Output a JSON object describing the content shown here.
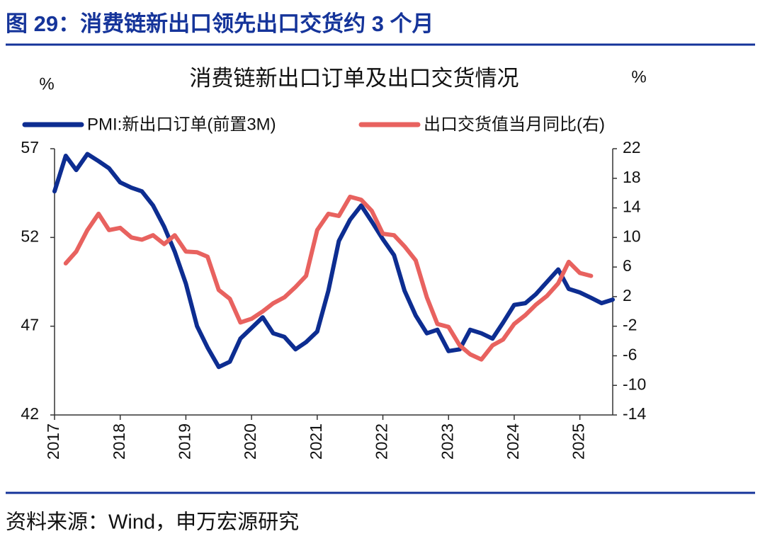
{
  "figure_title": "图 29：消费链新出口领先出口交货约 3 个月",
  "source": "资料来源：Wind，申万宏源研究",
  "chart_data": {
    "type": "line",
    "title": "消费链新出口订单及出口交货情况",
    "ylabel": "%",
    "y2label": "%",
    "x": [
      2017,
      2017.17,
      2017.33,
      2017.5,
      2017.67,
      2017.83,
      2018,
      2018.17,
      2018.33,
      2018.5,
      2018.67,
      2018.83,
      2019,
      2019.17,
      2019.33,
      2019.5,
      2019.67,
      2019.83,
      2020,
      2020.17,
      2020.33,
      2020.5,
      2020.67,
      2020.83,
      2021,
      2021.17,
      2021.33,
      2021.5,
      2021.67,
      2021.83,
      2022,
      2022.17,
      2022.33,
      2022.5,
      2022.67,
      2022.83,
      2023,
      2023.17,
      2023.33,
      2023.5,
      2023.67,
      2023.83,
      2024,
      2024.17,
      2024.33,
      2024.5,
      2024.67,
      2024.83,
      2025,
      2025.17,
      2025.33,
      2025.5
    ],
    "series": [
      {
        "name": "PMI:新出口订单(前置3M)",
        "color": "#0d2d91",
        "values": [
          54.6,
          56.6,
          55.8,
          56.7,
          56.3,
          55.9,
          55.1,
          54.8,
          54.6,
          53.8,
          52.6,
          51.2,
          49.4,
          47.0,
          45.8,
          44.7,
          45.0,
          46.3,
          46.9,
          47.5,
          46.6,
          46.4,
          45.7,
          46.1,
          46.7,
          49.0,
          51.8,
          53.0,
          53.8,
          52.9,
          51.9,
          51.0,
          49.0,
          47.6,
          46.6,
          46.8,
          45.6,
          45.7,
          46.8,
          46.6,
          46.3,
          47.2,
          48.2,
          48.3,
          48.8,
          49.5,
          50.2,
          49.1,
          48.9,
          48.6,
          48.3,
          48.5
        ]
      },
      {
        "name": "出口交货值当月同比(右)",
        "color": "#e8625f",
        "axis": "y2",
        "values": [
          null,
          6.5,
          8.1,
          11.0,
          13.2,
          11.0,
          11.3,
          10.0,
          9.7,
          10.3,
          9.1,
          10.3,
          8.1,
          8.0,
          7.4,
          2.9,
          1.7,
          -1.5,
          -1.0,
          0.0,
          1.1,
          1.9,
          3.3,
          4.8,
          11.0,
          13.2,
          12.9,
          15.5,
          15.1,
          13.6,
          10.5,
          10.3,
          8.8,
          6.9,
          1.9,
          -1.7,
          -2.1,
          -4.6,
          -5.8,
          -6.5,
          -4.6,
          -3.8,
          -1.7,
          -0.5,
          0.9,
          2.1,
          3.8,
          6.7,
          5.2,
          4.8,
          null,
          null
        ]
      }
    ],
    "xlim": [
      2017,
      2025.5
    ],
    "xticks": [
      2017,
      2018,
      2019,
      2020,
      2021,
      2022,
      2023,
      2024,
      2025
    ],
    "ylim": [
      42,
      57
    ],
    "yticks": [
      42,
      47,
      52,
      57
    ],
    "y2lim": [
      -14,
      22
    ],
    "y2ticks": [
      -14,
      -10,
      -6,
      -2,
      2,
      6,
      10,
      14,
      18,
      22
    ],
    "legend": "top"
  }
}
